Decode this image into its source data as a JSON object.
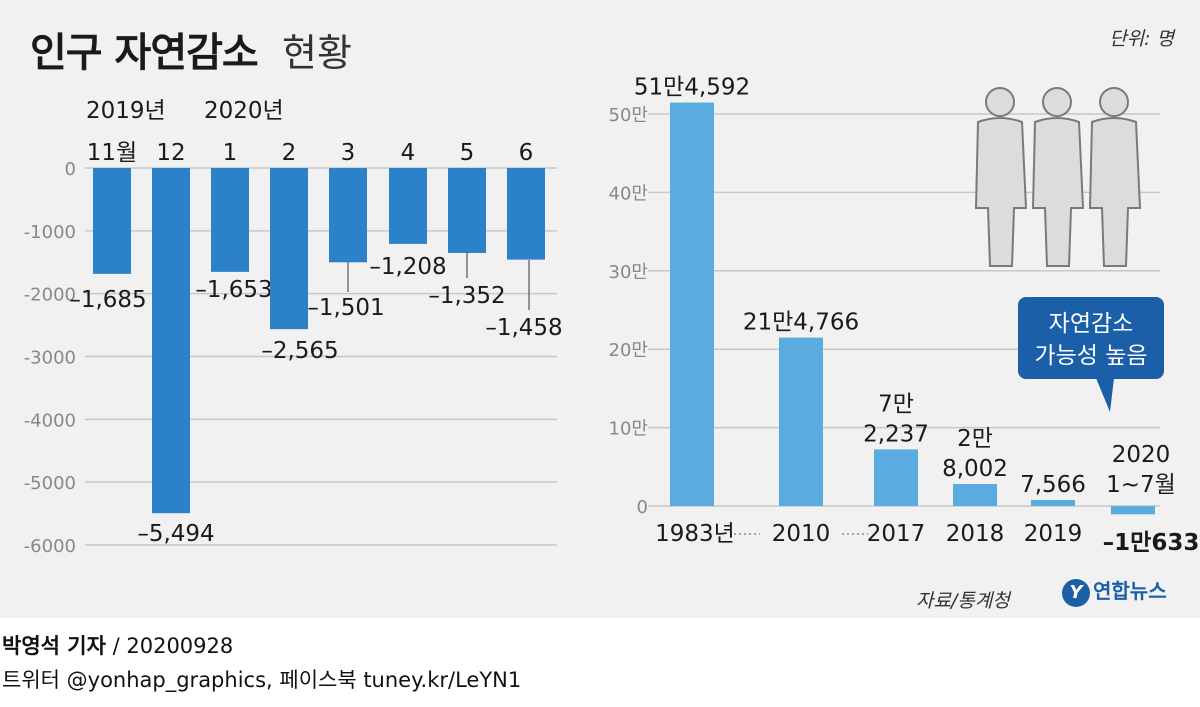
{
  "title": {
    "main": "인구 자연감소",
    "sub": "현황"
  },
  "unit": "단위: 명",
  "source": "자료/통계청",
  "logo": {
    "mark": "Y",
    "text": "연합뉴스"
  },
  "credit": {
    "name": "박영석 기자",
    "sep": " / ",
    "date": "20200928"
  },
  "sns": "트위터 @yonhap_graphics, 페이스북 tuney.kr/LeYN1",
  "callout": {
    "line1": "자연감소",
    "line2": "가능성 높음"
  },
  "colors": {
    "left_bar": "#2b82c8",
    "right_bar": "#5aace0",
    "callout": "#1a5fa8",
    "grid": "#c8c8c8",
    "panel": "#f1f1f1"
  },
  "chart_data": [
    {
      "type": "bar",
      "year_labels": [
        {
          "text": "2019년",
          "index": 0
        },
        {
          "text": "2020년",
          "index": 2
        }
      ],
      "categories": [
        "11월",
        "12",
        "1",
        "2",
        "3",
        "4",
        "5",
        "6"
      ],
      "values": [
        -1685,
        -5494,
        -1653,
        -2565,
        -1501,
        -1208,
        -1352,
        -1458
      ],
      "value_labels": [
        "–1,685",
        "–5,494",
        "–1,653",
        "–2,565",
        "–1,501",
        "–1,208",
        "–1,352",
        "–1,458"
      ],
      "y_ticks": [
        0,
        -1000,
        -2000,
        -3000,
        -4000,
        -5000,
        -6000
      ],
      "y_tick_labels": [
        "0",
        "-1000",
        "-2000",
        "-3000",
        "-4000",
        "-5000",
        "-6000"
      ],
      "ylim": [
        -6000,
        0
      ],
      "grid": true
    },
    {
      "type": "bar",
      "categories": [
        "1983년",
        "2010",
        "2017",
        "2018",
        "2019",
        "2020 1~7월"
      ],
      "category_labels": [
        [
          "1983년"
        ],
        [
          "2010"
        ],
        [
          "2017"
        ],
        [
          "2018"
        ],
        [
          "2019"
        ],
        [
          "2020",
          "1~7월"
        ]
      ],
      "values": [
        514592,
        214766,
        72237,
        28002,
        7566,
        -10633
      ],
      "value_labels": [
        [
          "51만4,592"
        ],
        [
          "21만4,766"
        ],
        [
          "7만",
          "2,237"
        ],
        [
          "2만",
          "8,002"
        ],
        [
          "7,566"
        ],
        [
          "–1만633"
        ]
      ],
      "y_ticks": [
        0,
        100000,
        200000,
        300000,
        400000,
        500000
      ],
      "y_tick_labels": [
        "0",
        "10만",
        "20만",
        "30만",
        "40만",
        "50만"
      ],
      "ylim": [
        0,
        520000
      ],
      "grid": true
    }
  ]
}
